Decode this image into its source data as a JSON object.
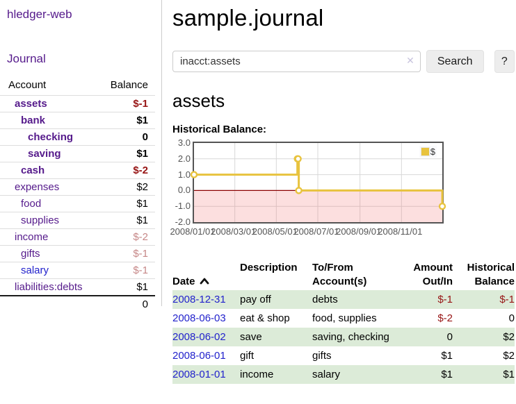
{
  "app": {
    "title": "hledger-web",
    "nav_journal": "Journal"
  },
  "sidebar": {
    "header": {
      "account": "Account",
      "balance": "Balance"
    },
    "accounts": [
      {
        "name": "assets",
        "balance": "$-1"
      },
      {
        "name": "bank",
        "balance": "$1"
      },
      {
        "name": "checking",
        "balance": "0"
      },
      {
        "name": "saving",
        "balance": "$1"
      },
      {
        "name": "cash",
        "balance": "$-2"
      },
      {
        "name": "expenses",
        "balance": "$2"
      },
      {
        "name": "food",
        "balance": "$1"
      },
      {
        "name": "supplies",
        "balance": "$1"
      },
      {
        "name": "income",
        "balance": "$-2"
      },
      {
        "name": "gifts",
        "balance": "$-1"
      },
      {
        "name": "salary",
        "balance": "$-1"
      },
      {
        "name": "liabilities:debts",
        "balance": "$1"
      }
    ],
    "total": "0"
  },
  "main": {
    "title": "sample.journal",
    "search": {
      "value": "inacct:assets",
      "clear_icon": "✕",
      "button_label": "Search",
      "help_label": "?"
    },
    "account_heading": "assets",
    "chart_heading": "Historical Balance:"
  },
  "chart_data": {
    "type": "line",
    "title": "Historical Balance:",
    "step": true,
    "series": [
      {
        "name": "$",
        "color": "#E8C33E",
        "points": [
          [
            "2008-01-01",
            1
          ],
          [
            "2008-06-01",
            2
          ],
          [
            "2008-06-02",
            2
          ],
          [
            "2008-06-03",
            0
          ],
          [
            "2008-12-31",
            -1
          ]
        ]
      }
    ],
    "x_ticks": [
      "2008/01/01",
      "2008/03/01",
      "2008/05/01",
      "2008/07/01",
      "2008/09/01",
      "2008/11/01"
    ],
    "y_ticks": [
      3.0,
      2.0,
      1.0,
      0.0,
      -1.0,
      -2.0
    ],
    "ylim": [
      -2.0,
      3.0
    ],
    "grid": true,
    "grid_color": "#D8D8D8",
    "zero_line_color": "#8B0000",
    "negative_region_fill": "rgba(242,110,110,0.22)",
    "legend_position": "top-right",
    "marker": {
      "fill": "#FFFFFF",
      "stroke": "#E8C33E"
    }
  },
  "register": {
    "headers": {
      "date": "Date",
      "sort_icon": "chevron-up",
      "description": "Description",
      "accounts": "To/From\nAccount(s)",
      "amount": "Amount\nOut/In",
      "balance": "Historical\nBalance"
    },
    "rows": [
      {
        "date": "2008-12-31",
        "description": "pay off",
        "accounts": "debts",
        "amount": "$-1",
        "balance": "$-1"
      },
      {
        "date": "2008-06-03",
        "description": "eat & shop",
        "accounts": "food, supplies",
        "amount": "$-2",
        "balance": "0"
      },
      {
        "date": "2008-06-02",
        "description": "save",
        "accounts": "saving, checking",
        "amount": "0",
        "balance": "$2"
      },
      {
        "date": "2008-06-01",
        "description": "gift",
        "accounts": "gifts",
        "amount": "$1",
        "balance": "$2"
      },
      {
        "date": "2008-01-01",
        "description": "income",
        "accounts": "salary",
        "amount": "$1",
        "balance": "$1"
      }
    ]
  },
  "colors": {
    "accent_purple": "#551A8B",
    "link_blue": "#2222CC",
    "negative_dark": "#971414",
    "negative_rosy": "#C68787",
    "row_green": "#DCEBD8"
  }
}
